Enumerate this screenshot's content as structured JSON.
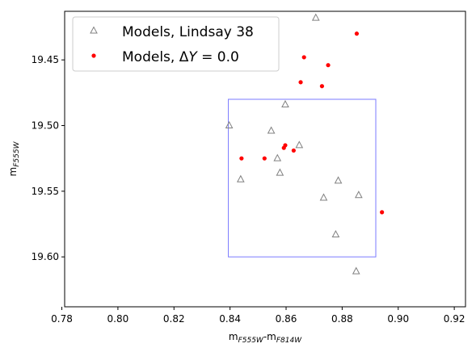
{
  "chart_data": {
    "type": "scatter",
    "xlabel_main": "m",
    "xlabel_sub1": "F555W",
    "xlabel_sep": "-m",
    "xlabel_sub2": "F814W",
    "ylabel_main": "m",
    "ylabel_sub": "F555W",
    "xlim": [
      0.781,
      0.924
    ],
    "ylim": [
      19.638,
      19.413
    ],
    "x_ticks": [
      {
        "value": 0.78,
        "label": "0.78"
      },
      {
        "value": 0.8,
        "label": "0.80"
      },
      {
        "value": 0.82,
        "label": "0.82"
      },
      {
        "value": 0.84,
        "label": "0.84"
      },
      {
        "value": 0.86,
        "label": "0.86"
      },
      {
        "value": 0.88,
        "label": "0.88"
      },
      {
        "value": 0.9,
        "label": "0.90"
      },
      {
        "value": 0.92,
        "label": "0.92"
      }
    ],
    "y_ticks": [
      {
        "value": 19.45,
        "label": "19.45"
      },
      {
        "value": 19.5,
        "label": "19.50"
      },
      {
        "value": 19.55,
        "label": "19.55"
      },
      {
        "value": 19.6,
        "label": "19.60"
      }
    ],
    "series": [
      {
        "name": "Models, Lindsay 38",
        "marker": "triangle-open",
        "color": "#808080",
        "points": [
          {
            "x": 0.8706,
            "y": 19.418
          },
          {
            "x": 0.8597,
            "y": 19.484
          },
          {
            "x": 0.8397,
            "y": 19.5
          },
          {
            "x": 0.8547,
            "y": 19.504
          },
          {
            "x": 0.8647,
            "y": 19.515
          },
          {
            "x": 0.8569,
            "y": 19.525
          },
          {
            "x": 0.8578,
            "y": 19.536
          },
          {
            "x": 0.8438,
            "y": 19.541
          },
          {
            "x": 0.8786,
            "y": 19.542
          },
          {
            "x": 0.8734,
            "y": 19.555
          },
          {
            "x": 0.8859,
            "y": 19.553
          },
          {
            "x": 0.8777,
            "y": 19.583
          },
          {
            "x": 0.885,
            "y": 19.611
          }
        ]
      },
      {
        "name_prefix": "Models, Δ",
        "name_var": "Y",
        "name_suffix": " = 0.0",
        "marker": "dot",
        "color": "#ff0000",
        "points": [
          {
            "x": 0.8852,
            "y": 19.43
          },
          {
            "x": 0.8664,
            "y": 19.448
          },
          {
            "x": 0.875,
            "y": 19.454
          },
          {
            "x": 0.8652,
            "y": 19.467
          },
          {
            "x": 0.8728,
            "y": 19.47
          },
          {
            "x": 0.8597,
            "y": 19.515
          },
          {
            "x": 0.8592,
            "y": 19.517
          },
          {
            "x": 0.8627,
            "y": 19.519
          },
          {
            "x": 0.8441,
            "y": 19.525
          },
          {
            "x": 0.8523,
            "y": 19.525
          },
          {
            "x": 0.8942,
            "y": 19.566
          }
        ]
      }
    ],
    "box": {
      "x0": 0.8394,
      "x1": 0.892,
      "y0": 19.48,
      "y1": 19.6,
      "color": "#7a7aff"
    },
    "legend": {
      "position": "top-left"
    }
  }
}
